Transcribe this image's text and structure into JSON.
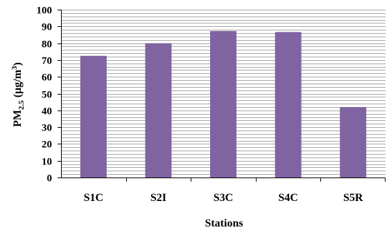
{
  "chart_data": {
    "type": "bar",
    "categories": [
      "S1C",
      "S2I",
      "S3C",
      "S4C",
      "S5R"
    ],
    "values": [
      72.5,
      80,
      87.3,
      86.7,
      42
    ],
    "xlabel": "Stations",
    "ylabel": {
      "prefix": "PM",
      "subscript": "2.5",
      "unit_open": " (µg/m",
      "superscript": "3",
      "unit_close": ")"
    },
    "ylim": [
      0,
      100
    ],
    "ytick_step": 10,
    "grid": true,
    "bar_color": "#8064a2",
    "grid_color": "#a6a6a6"
  }
}
